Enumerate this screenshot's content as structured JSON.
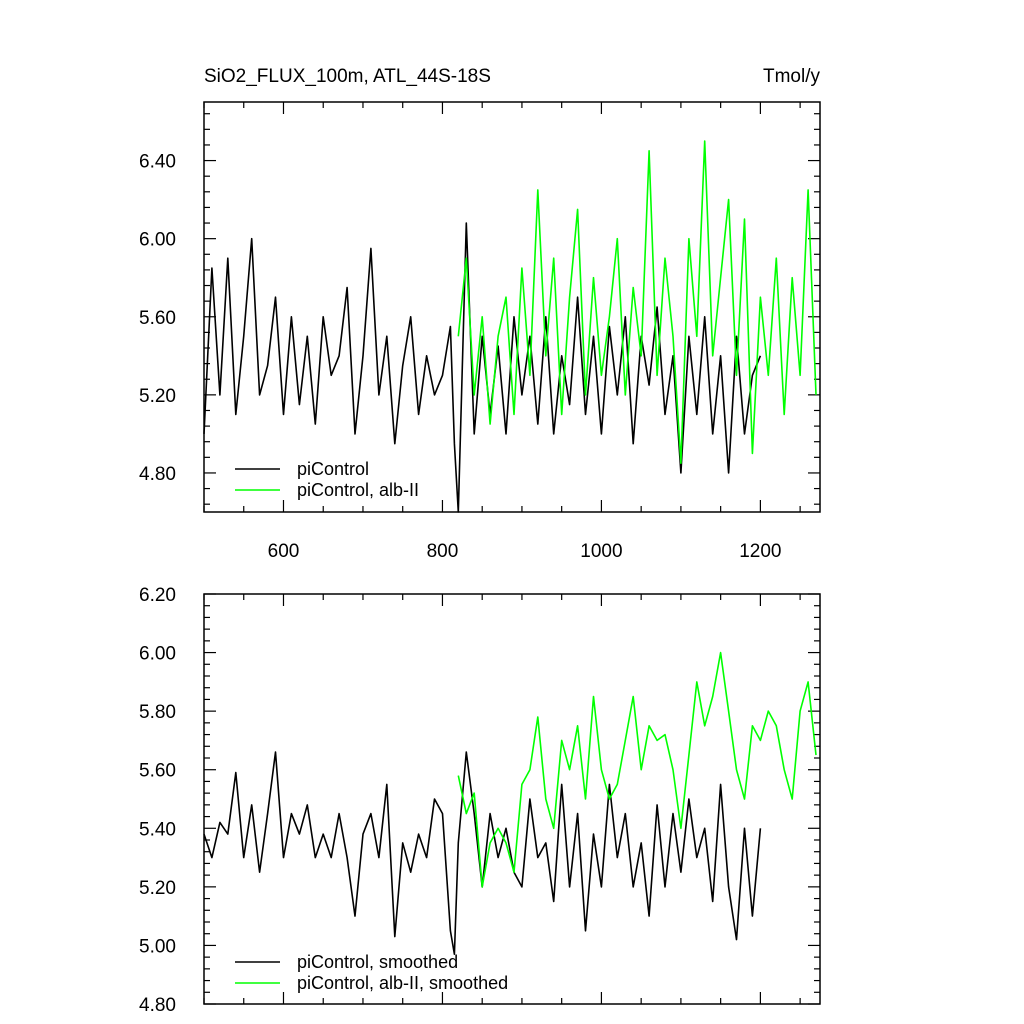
{
  "chart_data": [
    {
      "type": "line",
      "title": "SiO2_FLUX_100m, ATL_44S-18S",
      "units": "Tmol/y",
      "xlim": [
        500,
        1275
      ],
      "ylim": [
        4.6,
        6.7
      ],
      "x_ticks": [
        600,
        800,
        1000,
        1200
      ],
      "x_tick_labels": [
        "600",
        "800",
        "1000",
        "1200"
      ],
      "y_ticks": [
        4.8,
        5.2,
        5.6,
        6.0,
        6.4
      ],
      "y_tick_labels": [
        "4.80",
        "5.20",
        "5.60",
        "6.00",
        "6.40"
      ],
      "legend_position": "bottom-left",
      "series": [
        {
          "name": "piControl",
          "color": "#000000",
          "x": [
            500,
            510,
            520,
            530,
            540,
            550,
            560,
            570,
            580,
            590,
            600,
            610,
            620,
            630,
            640,
            650,
            660,
            670,
            680,
            690,
            700,
            710,
            720,
            730,
            740,
            750,
            760,
            770,
            780,
            790,
            800,
            810,
            815,
            820,
            830,
            840,
            850,
            860,
            870,
            880,
            890,
            900,
            910,
            920,
            930,
            940,
            950,
            960,
            970,
            980,
            990,
            1000,
            1010,
            1020,
            1030,
            1040,
            1050,
            1060,
            1070,
            1080,
            1090,
            1100,
            1110,
            1120,
            1130,
            1140,
            1150,
            1160,
            1170,
            1180,
            1190,
            1200
          ],
          "values": [
            5.0,
            5.85,
            5.2,
            5.9,
            5.1,
            5.5,
            6.0,
            5.2,
            5.35,
            5.7,
            5.1,
            5.6,
            5.15,
            5.5,
            5.05,
            5.6,
            5.3,
            5.4,
            5.75,
            5.0,
            5.4,
            5.95,
            5.2,
            5.5,
            4.95,
            5.35,
            5.6,
            5.1,
            5.4,
            5.2,
            5.3,
            5.55,
            4.95,
            4.6,
            6.08,
            5.0,
            5.5,
            5.1,
            5.45,
            5.0,
            5.6,
            5.2,
            5.5,
            5.05,
            5.6,
            5.0,
            5.4,
            5.15,
            5.7,
            5.1,
            5.5,
            5.0,
            5.55,
            5.2,
            5.6,
            4.95,
            5.5,
            5.25,
            5.65,
            5.1,
            5.4,
            4.8,
            5.5,
            5.1,
            5.6,
            5.0,
            5.4,
            4.8,
            5.5,
            5.0,
            5.3,
            5.4
          ]
        },
        {
          "name": "piControl, alb-II",
          "color": "#00ff00",
          "x": [
            820,
            830,
            840,
            850,
            860,
            870,
            880,
            890,
            900,
            910,
            920,
            930,
            940,
            950,
            960,
            970,
            980,
            990,
            1000,
            1010,
            1020,
            1030,
            1040,
            1050,
            1060,
            1070,
            1080,
            1090,
            1100,
            1110,
            1120,
            1130,
            1140,
            1150,
            1160,
            1170,
            1180,
            1190,
            1200,
            1210,
            1220,
            1230,
            1240,
            1250,
            1260,
            1270
          ],
          "values": [
            5.5,
            5.9,
            5.2,
            5.6,
            5.05,
            5.5,
            5.7,
            5.1,
            5.85,
            5.3,
            6.25,
            5.4,
            5.9,
            5.1,
            5.7,
            6.15,
            5.2,
            5.8,
            5.3,
            5.6,
            6.0,
            5.2,
            5.75,
            5.4,
            6.45,
            5.3,
            5.9,
            5.5,
            4.85,
            6.0,
            5.5,
            6.5,
            5.4,
            5.8,
            6.2,
            5.3,
            6.1,
            4.9,
            5.7,
            5.3,
            5.9,
            5.1,
            5.8,
            5.3,
            6.25,
            5.2
          ]
        }
      ]
    },
    {
      "type": "line",
      "xlim": [
        500,
        1275
      ],
      "ylim": [
        4.8,
        6.2
      ],
      "x_ticks": [
        600,
        800,
        1000,
        1200
      ],
      "y_ticks": [
        4.8,
        5.0,
        5.2,
        5.4,
        5.6,
        5.8,
        6.0,
        6.2
      ],
      "y_tick_labels": [
        "4.80",
        "5.00",
        "5.20",
        "5.40",
        "5.60",
        "5.80",
        "6.00",
        "6.20"
      ],
      "legend_position": "bottom-left",
      "series": [
        {
          "name": "piControl, smoothed",
          "color": "#000000",
          "x": [
            500,
            510,
            520,
            530,
            540,
            550,
            560,
            570,
            580,
            590,
            600,
            610,
            620,
            630,
            640,
            650,
            660,
            670,
            680,
            690,
            700,
            710,
            720,
            730,
            740,
            750,
            760,
            770,
            780,
            790,
            800,
            810,
            815,
            820,
            830,
            840,
            850,
            860,
            870,
            880,
            890,
            900,
            910,
            920,
            930,
            940,
            950,
            960,
            970,
            980,
            990,
            1000,
            1010,
            1020,
            1030,
            1040,
            1050,
            1060,
            1070,
            1080,
            1090,
            1100,
            1110,
            1120,
            1130,
            1140,
            1150,
            1160,
            1170,
            1180,
            1190,
            1200
          ],
          "values": [
            5.38,
            5.3,
            5.42,
            5.38,
            5.59,
            5.3,
            5.48,
            5.25,
            5.45,
            5.66,
            5.3,
            5.45,
            5.38,
            5.48,
            5.3,
            5.38,
            5.3,
            5.45,
            5.3,
            5.1,
            5.38,
            5.45,
            5.3,
            5.55,
            5.03,
            5.35,
            5.25,
            5.38,
            5.3,
            5.5,
            5.45,
            5.05,
            4.97,
            5.35,
            5.66,
            5.45,
            5.2,
            5.45,
            5.3,
            5.4,
            5.25,
            5.2,
            5.5,
            5.3,
            5.35,
            5.15,
            5.55,
            5.2,
            5.45,
            5.05,
            5.38,
            5.2,
            5.55,
            5.3,
            5.45,
            5.2,
            5.35,
            5.1,
            5.48,
            5.2,
            5.45,
            5.25,
            5.5,
            5.3,
            5.4,
            5.15,
            5.55,
            5.2,
            5.02,
            5.4,
            5.1,
            5.4
          ]
        },
        {
          "name": "piControl, alb-II, smoothed",
          "color": "#00ff00",
          "x": [
            820,
            830,
            840,
            850,
            860,
            870,
            880,
            890,
            900,
            910,
            920,
            930,
            940,
            950,
            960,
            970,
            980,
            990,
            1000,
            1010,
            1020,
            1030,
            1040,
            1050,
            1060,
            1070,
            1080,
            1090,
            1100,
            1110,
            1120,
            1130,
            1140,
            1150,
            1160,
            1170,
            1180,
            1190,
            1200,
            1210,
            1220,
            1230,
            1240,
            1250,
            1260,
            1270
          ],
          "values": [
            5.58,
            5.45,
            5.52,
            5.2,
            5.35,
            5.4,
            5.35,
            5.25,
            5.55,
            5.6,
            5.78,
            5.5,
            5.4,
            5.7,
            5.6,
            5.75,
            5.5,
            5.85,
            5.6,
            5.5,
            5.55,
            5.7,
            5.85,
            5.6,
            5.75,
            5.7,
            5.72,
            5.6,
            5.4,
            5.65,
            5.9,
            5.75,
            5.85,
            6.0,
            5.8,
            5.6,
            5.5,
            5.75,
            5.7,
            5.8,
            5.75,
            5.6,
            5.5,
            5.8,
            5.9,
            5.65
          ]
        }
      ]
    }
  ]
}
